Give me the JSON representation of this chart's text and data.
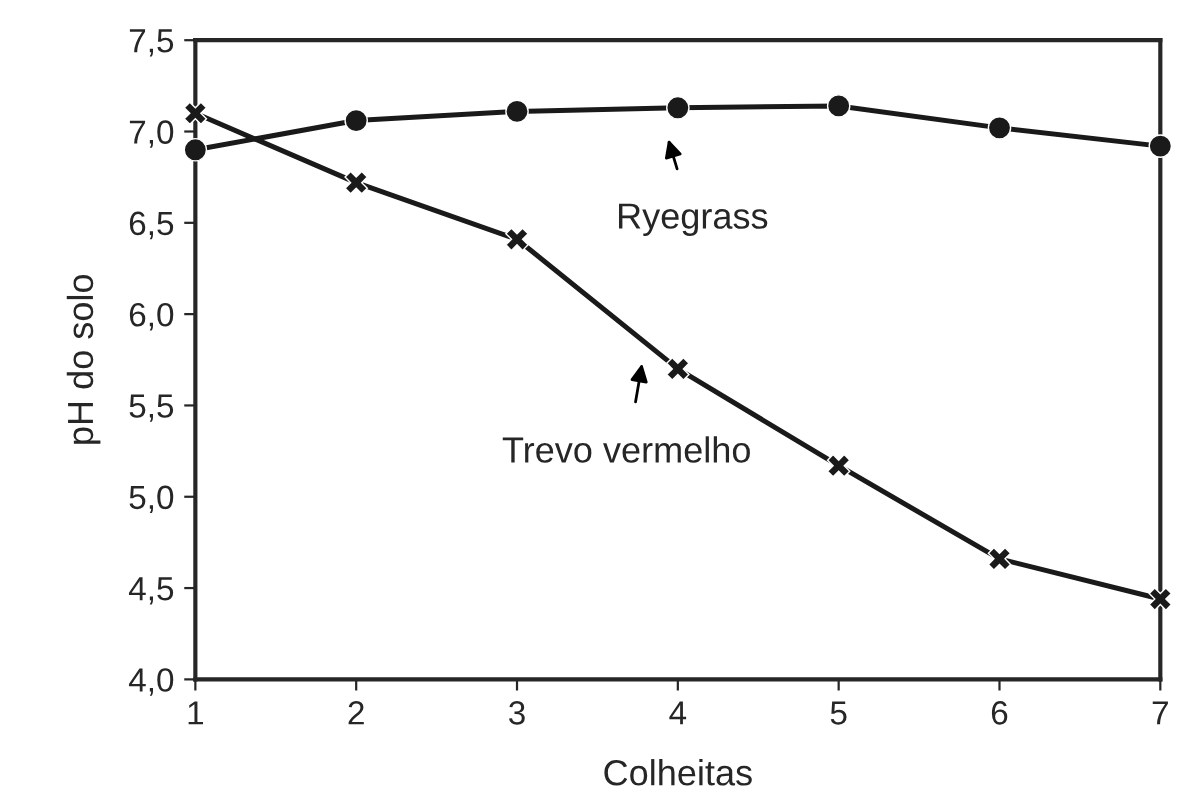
{
  "chart_data": {
    "type": "line",
    "xlabel": "Colheitas",
    "ylabel": "pH do solo",
    "x": [
      1,
      2,
      3,
      4,
      5,
      6,
      7
    ],
    "series": [
      {
        "color": "#1a1a1a",
        "marker": "circle",
        "values": [
          6.9,
          7.06,
          7.11,
          7.13,
          7.14,
          7.02,
          6.92
        ]
      },
      {
        "color": "#1a1a1a",
        "marker": "cross",
        "values": [
          7.1,
          6.72,
          6.41,
          5.7,
          5.17,
          4.66,
          4.44
        ]
      }
    ],
    "xlim": [
      1,
      7
    ],
    "xticks": [
      1,
      2,
      3,
      4,
      5,
      6,
      7
    ],
    "ylim": [
      4.0,
      7.5
    ],
    "yticks": [
      {
        "value": 4.0,
        "label": "4,0"
      },
      {
        "value": 4.5,
        "label": "4,5"
      },
      {
        "value": 5.0,
        "label": "5,0"
      },
      {
        "value": 5.5,
        "label": "5,5"
      },
      {
        "value": 6.0,
        "label": "6,0"
      },
      {
        "value": 6.5,
        "label": "6,5"
      },
      {
        "value": 7.0,
        "label": "7,0"
      },
      {
        "value": 7.5,
        "label": "7,5"
      }
    ],
    "grid": false,
    "legend": false,
    "line_style": "solid",
    "annotations": [
      "Ryegrass",
      "Trevo vermelho"
    ]
  }
}
